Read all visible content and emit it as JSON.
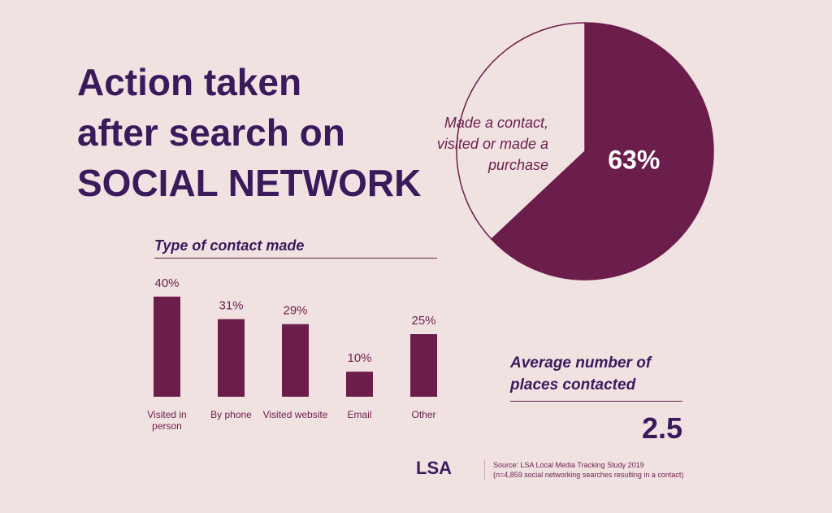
{
  "title": [
    "Action taken",
    "after search on",
    "SOCIAL NETWORK"
  ],
  "chart_data": [
    {
      "type": "pie",
      "categories": [
        "Made a contact, visited or made a purchase",
        null
      ],
      "values": [
        63,
        37
      ],
      "value_labels": [
        "63%",
        null
      ],
      "colors": [
        "#6b1d4b",
        "#f1e2e2"
      ]
    },
    {
      "type": "bar",
      "title": "Type of contact made",
      "categories": [
        "Visited in person",
        "By phone",
        "Visited website",
        "Email",
        "Other"
      ],
      "values": [
        40,
        31,
        29,
        10,
        25
      ],
      "value_labels": [
        "40%",
        "31%",
        "29%",
        "10%",
        "25%"
      ],
      "color": "#6b1d4b"
    }
  ],
  "average": {
    "label": "Average number of places contacted",
    "value": "2.5"
  },
  "footer": {
    "logo": "LSA",
    "source": "Source: LSA Local Media Tracking Study 2019",
    "note": "(n=4,859 social networking searches resulting in a contact)"
  }
}
